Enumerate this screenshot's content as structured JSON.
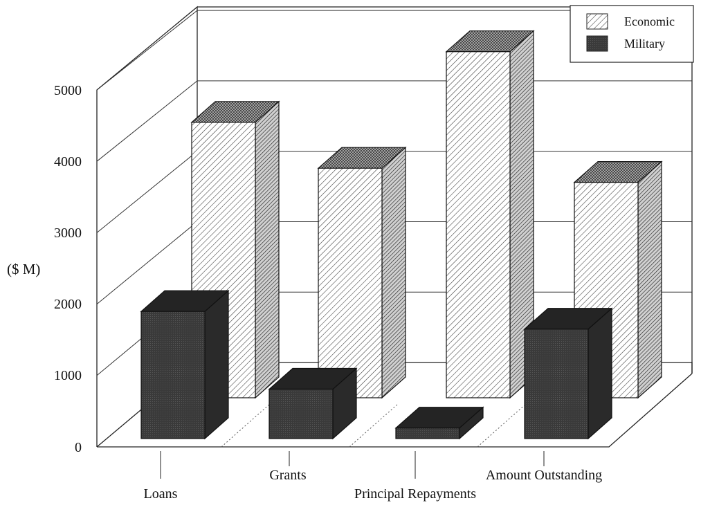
{
  "chart_data": {
    "type": "bar",
    "ylabel": "($ M)",
    "ylim": [
      0,
      5000
    ],
    "yticks": [
      "5000",
      "4000",
      "3000",
      "2000",
      "1000",
      "0"
    ],
    "categories": [
      "Loans",
      "Grants",
      "Principal Repayments",
      "Amount Outstanding"
    ],
    "series": [
      {
        "name": "Economic",
        "values": [
          3900,
          3250,
          4900,
          3050
        ]
      },
      {
        "name": "Military",
        "values": [
          1800,
          700,
          150,
          1550
        ]
      }
    ],
    "legend": "top-right",
    "grid": true,
    "style": "3d"
  }
}
